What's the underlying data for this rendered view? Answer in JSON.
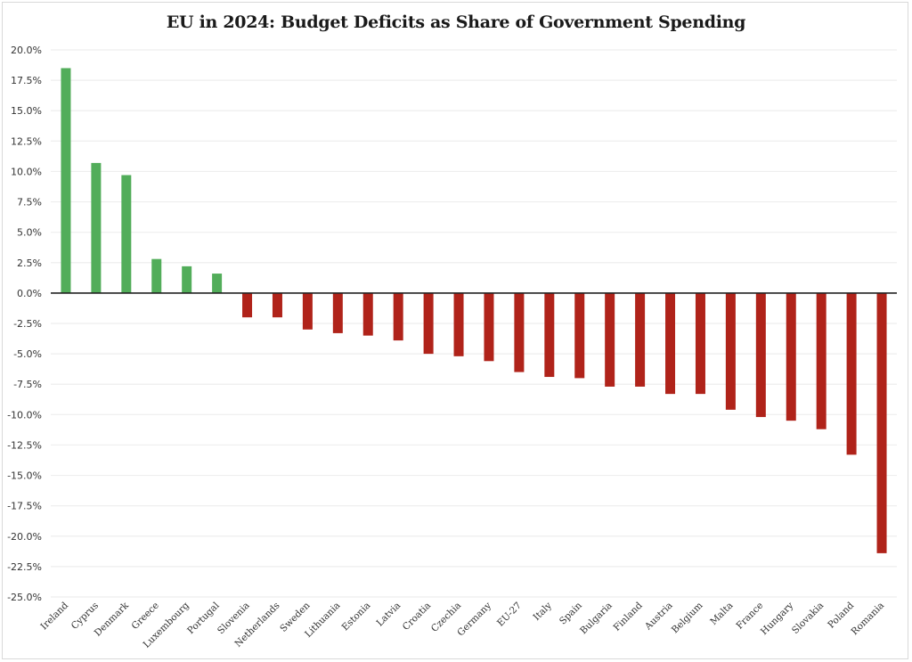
{
  "chart_data": {
    "type": "bar",
    "title": "EU in 2024: Budget Deficits as Share of Government Spending",
    "xlabel": "",
    "ylabel": "",
    "ylim": [
      -25,
      20
    ],
    "ytick_step": 2.5,
    "ytick_format": "percent_1dp",
    "grid": true,
    "legend": "none",
    "colors": {
      "positive": "#52ad5a",
      "negative": "#b0231a",
      "zero_line": "#222222",
      "grid": "#eeeeee"
    },
    "categories": [
      "Ireland",
      "Cyprus",
      "Denmark",
      "Greece",
      "Luxembourg",
      "Portugal",
      "Slovenia",
      "Netherlands",
      "Sweden",
      "Lithuania",
      "Estonia",
      "Latvia",
      "Croatia",
      "Czechia",
      "Germany",
      "EU-27",
      "Italy",
      "Spain",
      "Bulgaria",
      "Finland",
      "Austria",
      "Belgium",
      "Malta",
      "France",
      "Hungary",
      "Slovakia",
      "Poland",
      "Romania"
    ],
    "values": [
      18.5,
      10.7,
      9.7,
      2.8,
      2.2,
      1.6,
      -2.0,
      -2.0,
      -3.0,
      -3.3,
      -3.5,
      -3.9,
      -5.0,
      -5.2,
      -5.6,
      -6.5,
      -6.9,
      -7.0,
      -7.7,
      -7.7,
      -8.3,
      -8.3,
      -9.6,
      -10.2,
      -10.5,
      -11.2,
      -13.3,
      -21.4
    ],
    "yticks": [
      "20.0%",
      "17.5%",
      "15.0%",
      "12.5%",
      "10.0%",
      "7.5%",
      "5.0%",
      "2.5%",
      "0.0%",
      "-2.5%",
      "-5.0%",
      "-7.5%",
      "-10.0%",
      "-12.5%",
      "-15.0%",
      "-17.5%",
      "-20.0%",
      "-22.5%",
      "-25.0%"
    ]
  }
}
